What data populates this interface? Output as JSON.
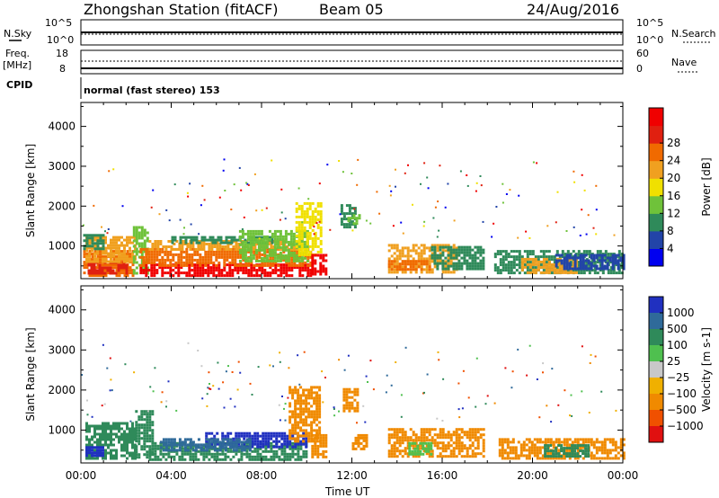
{
  "header": {
    "station": "Zhongshan Station (fitACF)",
    "beam": "Beam 05",
    "date": "24/Aug/2016"
  },
  "top_panels": {
    "nsky_label": "N.Sky",
    "nsky_ticks": [
      "10^5",
      "10^0"
    ],
    "nsearch_label": "N.Search",
    "nsearch_ticks": [
      "10^5",
      "10^0"
    ],
    "freq_label_line1": "Freq.",
    "freq_label_line2": "[MHz]",
    "freq_ticks": [
      "18",
      "8"
    ],
    "nave_label": "Nave",
    "nave_ticks": [
      "60",
      "0"
    ],
    "cpid_label": "CPID",
    "cpid_text": "normal (fast stereo) 153"
  },
  "chart_data": [
    {
      "type": "heatmap",
      "name": "power-rti",
      "ylabel": "Slant Range [km]",
      "ylim": [
        180,
        4600
      ],
      "yticks": [
        1000,
        2000,
        3000,
        4000
      ],
      "xlim": [
        0,
        24
      ],
      "xticks": [
        0,
        4,
        8,
        12,
        16,
        20,
        24
      ],
      "xtick_labels": [
        "00:00",
        "04:00",
        "08:00",
        "12:00",
        "16:00",
        "20:00",
        "00:00"
      ],
      "colorbar": {
        "label": "Power [dB]",
        "ticks": [
          "4",
          "8",
          "12",
          "16",
          "20",
          "24",
          "28"
        ],
        "colors": [
          "#0000f0",
          "#2244a8",
          "#2f8a5a",
          "#6fc23a",
          "#f0e000",
          "#f0a020",
          "#f06a00",
          "#e02010",
          "#f00000"
        ]
      },
      "blobs": [
        {
          "t0": 0.1,
          "t1": 2.3,
          "r0": 280,
          "r1": 900,
          "color": "#f06a00"
        },
        {
          "t0": 0.3,
          "t1": 2.0,
          "r0": 330,
          "r1": 620,
          "color": "#e02010"
        },
        {
          "t0": 0.2,
          "t1": 2.4,
          "r0": 600,
          "r1": 1250,
          "color": "#f0a020"
        },
        {
          "t0": 0.1,
          "t1": 1.0,
          "r0": 900,
          "r1": 1300,
          "color": "#2f8a5a"
        },
        {
          "t0": 2.3,
          "t1": 3.0,
          "r0": 300,
          "r1": 1500,
          "color": "#6fc23a"
        },
        {
          "t0": 2.6,
          "t1": 10.2,
          "r0": 280,
          "r1": 560,
          "color": "#f00000"
        },
        {
          "t0": 2.6,
          "t1": 10.2,
          "r0": 520,
          "r1": 950,
          "color": "#f06a00"
        },
        {
          "t0": 3.0,
          "t1": 9.8,
          "r0": 900,
          "r1": 1150,
          "color": "#f0a020"
        },
        {
          "t0": 4.0,
          "t1": 8.5,
          "r0": 1050,
          "r1": 1250,
          "color": "#2f8a5a"
        },
        {
          "t0": 7.0,
          "t1": 10.0,
          "r0": 600,
          "r1": 1400,
          "color": "#6fc23a"
        },
        {
          "t0": 9.5,
          "t1": 10.6,
          "r0": 800,
          "r1": 2100,
          "color": "#f0e000"
        },
        {
          "t0": 10.2,
          "t1": 10.8,
          "r0": 300,
          "r1": 800,
          "color": "#f00000"
        },
        {
          "t0": 11.5,
          "t1": 12.1,
          "r0": 1500,
          "r1": 2050,
          "color": "#2f8a5a"
        },
        {
          "t0": 11.8,
          "t1": 12.3,
          "r0": 1550,
          "r1": 1800,
          "color": "#6fc23a"
        },
        {
          "t0": 13.6,
          "t1": 16.6,
          "r0": 350,
          "r1": 1050,
          "color": "#f0a020"
        },
        {
          "t0": 13.6,
          "t1": 15.5,
          "r0": 380,
          "r1": 650,
          "color": "#f06a00"
        },
        {
          "t0": 15.5,
          "t1": 17.8,
          "r0": 400,
          "r1": 1000,
          "color": "#2f8a5a"
        },
        {
          "t0": 18.3,
          "t1": 24.0,
          "r0": 300,
          "r1": 900,
          "color": "#2f8a5a"
        },
        {
          "t0": 19.5,
          "t1": 22.0,
          "r0": 300,
          "r1": 700,
          "color": "#f0a020"
        },
        {
          "t0": 21.0,
          "t1": 24.0,
          "r0": 400,
          "r1": 800,
          "color": "#2244a8"
        }
      ]
    },
    {
      "type": "heatmap",
      "name": "velocity-rti",
      "ylabel": "Slant Range [km]",
      "xlabel": "Time UT",
      "ylim": [
        180,
        4600
      ],
      "yticks": [
        1000,
        2000,
        3000,
        4000
      ],
      "xlim": [
        0,
        24
      ],
      "xticks": [
        0,
        4,
        8,
        12,
        16,
        20,
        24
      ],
      "xtick_labels": [
        "00:00",
        "04:00",
        "08:00",
        "12:00",
        "16:00",
        "20:00",
        "00:00"
      ],
      "colorbar": {
        "label": "Velocity [m s-1]",
        "ticks": [
          "1000",
          "500",
          "100",
          "25",
          "−25",
          "−100",
          "−500",
          "−1000"
        ],
        "colors": [
          "#2030c0",
          "#2f6a9a",
          "#2f8a5a",
          "#4fc04f",
          "#c8c8c8",
          "#f0b000",
          "#f08a00",
          "#f05000",
          "#e01010"
        ]
      },
      "blobs": [
        {
          "t0": 0.2,
          "t1": 2.4,
          "r0": 280,
          "r1": 1200,
          "color": "#2f8a5a"
        },
        {
          "t0": 0.2,
          "t1": 1.0,
          "r0": 350,
          "r1": 600,
          "color": "#2030c0"
        },
        {
          "t0": 2.4,
          "t1": 3.2,
          "r0": 300,
          "r1": 1500,
          "color": "#2f8a5a"
        },
        {
          "t0": 3.0,
          "t1": 10.0,
          "r0": 280,
          "r1": 700,
          "color": "#2f8a5a"
        },
        {
          "t0": 5.5,
          "t1": 10.0,
          "r0": 600,
          "r1": 950,
          "color": "#2030c0"
        },
        {
          "t0": 3.5,
          "t1": 7.5,
          "r0": 500,
          "r1": 800,
          "color": "#2f6a9a"
        },
        {
          "t0": 9.2,
          "t1": 10.6,
          "r0": 700,
          "r1": 2100,
          "color": "#f08a00"
        },
        {
          "t0": 10.2,
          "t1": 10.8,
          "r0": 300,
          "r1": 900,
          "color": "#f08a00"
        },
        {
          "t0": 11.6,
          "t1": 12.3,
          "r0": 1500,
          "r1": 2050,
          "color": "#f08a00"
        },
        {
          "t0": 12.0,
          "t1": 12.6,
          "r0": 500,
          "r1": 900,
          "color": "#f08a00"
        },
        {
          "t0": 13.6,
          "t1": 17.8,
          "r0": 350,
          "r1": 1050,
          "color": "#f08a00"
        },
        {
          "t0": 14.5,
          "t1": 15.5,
          "r0": 400,
          "r1": 700,
          "color": "#4fc04f"
        },
        {
          "t0": 18.5,
          "t1": 24.0,
          "r0": 300,
          "r1": 800,
          "color": "#f08a00"
        },
        {
          "t0": 20.5,
          "t1": 22.5,
          "r0": 350,
          "r1": 650,
          "color": "#2f8a5a"
        }
      ]
    }
  ]
}
